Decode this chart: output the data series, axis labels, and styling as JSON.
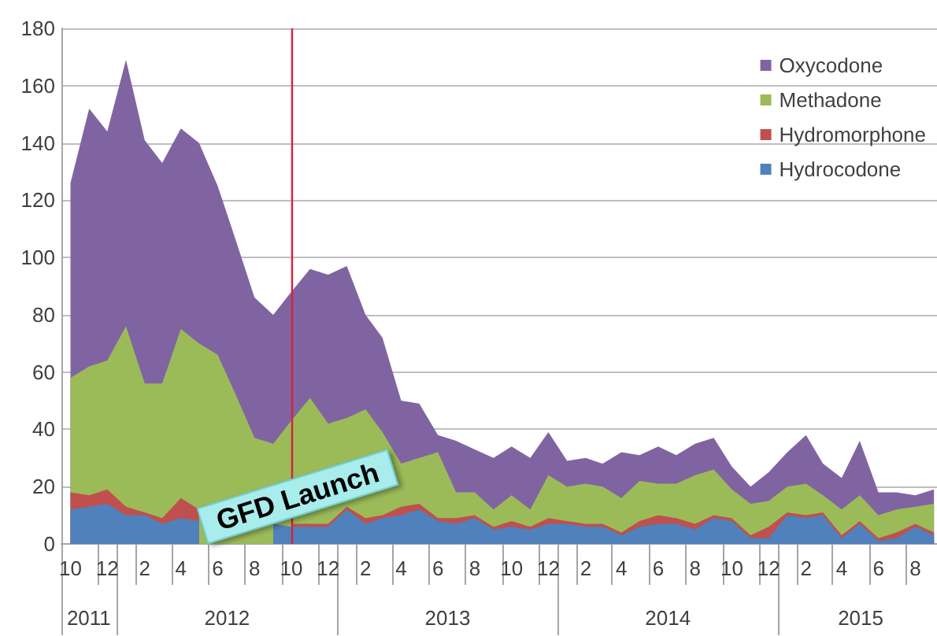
{
  "chart_data": {
    "type": "area",
    "stacked": true,
    "x": [
      "2011-10",
      "2011-11",
      "2011-12",
      "2012-01",
      "2012-02",
      "2012-03",
      "2012-04",
      "2012-05",
      "2012-06",
      "2012-07",
      "2012-08",
      "2012-09",
      "2012-10",
      "2012-11",
      "2012-12",
      "2013-01",
      "2013-02",
      "2013-03",
      "2013-04",
      "2013-05",
      "2013-06",
      "2013-07",
      "2013-08",
      "2013-09",
      "2013-10",
      "2013-11",
      "2013-12",
      "2014-01",
      "2014-02",
      "2014-03",
      "2014-04",
      "2014-05",
      "2014-06",
      "2014-07",
      "2014-08",
      "2014-09",
      "2014-10",
      "2014-11",
      "2014-12",
      "2015-01",
      "2015-02",
      "2015-03",
      "2015-04",
      "2015-05",
      "2015-06",
      "2015-07",
      "2015-08",
      "2015-09"
    ],
    "xlim": [
      "2011-09-16",
      "2015-09-06"
    ],
    "xticks": [
      {
        "value": "2011-10",
        "label": "10"
      },
      {
        "value": "2011-12",
        "label": "12"
      },
      {
        "value": "2012-02",
        "label": "2"
      },
      {
        "value": "2012-04",
        "label": "4"
      },
      {
        "value": "2012-06",
        "label": "6"
      },
      {
        "value": "2012-08",
        "label": "8"
      },
      {
        "value": "2012-10",
        "label": "10"
      },
      {
        "value": "2012-12",
        "label": "12"
      },
      {
        "value": "2013-02",
        "label": "2"
      },
      {
        "value": "2013-04",
        "label": "4"
      },
      {
        "value": "2013-06",
        "label": "6"
      },
      {
        "value": "2013-08",
        "label": "8"
      },
      {
        "value": "2013-10",
        "label": "10"
      },
      {
        "value": "2013-12",
        "label": "12"
      },
      {
        "value": "2014-02",
        "label": "2"
      },
      {
        "value": "2014-04",
        "label": "4"
      },
      {
        "value": "2014-06",
        "label": "6"
      },
      {
        "value": "2014-08",
        "label": "8"
      },
      {
        "value": "2014-10",
        "label": "10"
      },
      {
        "value": "2014-12",
        "label": "12"
      },
      {
        "value": "2015-02",
        "label": "2"
      },
      {
        "value": "2015-04",
        "label": "4"
      },
      {
        "value": "2015-06",
        "label": "6"
      },
      {
        "value": "2015-08",
        "label": "8"
      }
    ],
    "ylim": [
      0,
      180
    ],
    "yticks": [
      0,
      20,
      40,
      60,
      80,
      100,
      120,
      140,
      160,
      180
    ],
    "grid": "y",
    "legend": "top right",
    "series": [
      {
        "name": "Hydrocodone",
        "color": "#4f81bd",
        "values": [
          12,
          13,
          14,
          10,
          10,
          7,
          9,
          8,
          null,
          null,
          null,
          7,
          6,
          6,
          6,
          12,
          7,
          9,
          10,
          12,
          8,
          7,
          9,
          5,
          6,
          5,
          7,
          7,
          6,
          6,
          3,
          6,
          7,
          7,
          5,
          9,
          8,
          2,
          2,
          10,
          9,
          10,
          2,
          7,
          1,
          2,
          6,
          3
        ]
      },
      {
        "name": "Hydromorphone",
        "color": "#c0504d",
        "values": [
          6,
          4,
          5,
          3,
          1,
          2,
          7,
          4,
          null,
          null,
          null,
          null,
          1,
          1,
          1,
          1,
          2,
          1,
          3,
          2,
          1,
          2,
          1,
          1,
          2,
          1,
          2,
          1,
          1,
          1,
          1,
          2,
          3,
          2,
          2,
          1,
          1,
          1,
          4,
          1,
          1,
          1,
          1,
          1,
          1,
          2,
          1,
          1
        ]
      },
      {
        "name": "Methadone",
        "color": "#9bbb59",
        "values": [
          40,
          45,
          45,
          63,
          45,
          47,
          59,
          58,
          66,
          52,
          37,
          28,
          36,
          44,
          35,
          31,
          38,
          29,
          15,
          16,
          23,
          9,
          8,
          6,
          9,
          6,
          15,
          12,
          14,
          13,
          12,
          14,
          11,
          12,
          17,
          16,
          10,
          11,
          9,
          9,
          11,
          6,
          9,
          9,
          8,
          8,
          6,
          10
        ]
      },
      {
        "name": "Oxycodone",
        "color": "#8064a2",
        "values": [
          68,
          90,
          80,
          93,
          85,
          77,
          70,
          70,
          59,
          54,
          49,
          45,
          45,
          45,
          52,
          53,
          33,
          33,
          22,
          19,
          6,
          18,
          15,
          18,
          17,
          18,
          15,
          9,
          9,
          8,
          16,
          9,
          13,
          10,
          11,
          11,
          8,
          6,
          10,
          12,
          17,
          11,
          11,
          19,
          8,
          6,
          4,
          5
        ]
      }
    ],
    "ref_lines": [
      {
        "axis": "x",
        "value": "2012-10",
        "label": "GFD Launch",
        "color": "#d9213a"
      }
    ],
    "annotations": [
      "2011",
      "2012",
      "2013",
      "2014",
      "2015"
    ]
  }
}
